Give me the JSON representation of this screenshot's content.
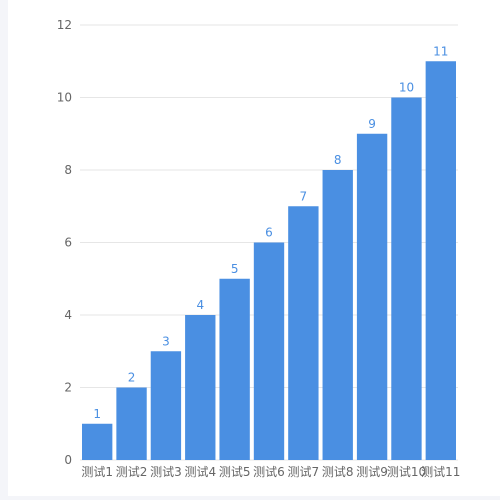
{
  "chart_data": {
    "type": "bar",
    "categories": [
      "测试1",
      "测试2",
      "测试3",
      "测试4",
      "测试5",
      "测试6",
      "测试7",
      "测试8",
      "测试9",
      "测试10",
      "测试11"
    ],
    "values": [
      1,
      2,
      3,
      4,
      5,
      6,
      7,
      8,
      9,
      10,
      11
    ],
    "ylim": [
      0,
      12
    ],
    "yticks": [
      0,
      2,
      4,
      6,
      8,
      10,
      12
    ],
    "title": "",
    "xlabel": "",
    "ylabel": "",
    "grid": true,
    "legend": "none",
    "bar_color": "#4a8fe2"
  }
}
